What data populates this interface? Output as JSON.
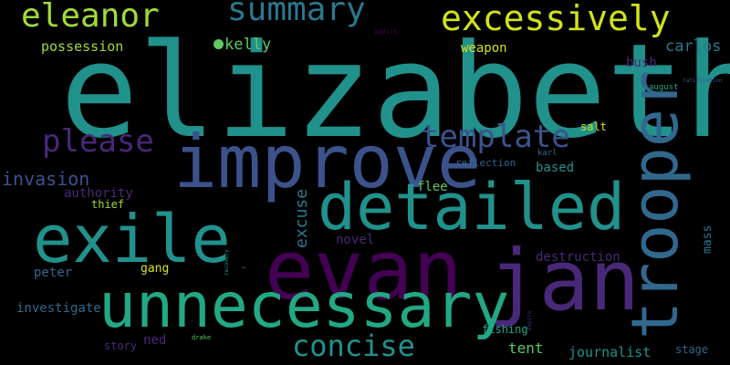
{
  "palette": {
    "background": "#000000",
    "teal": "#21918c",
    "green_teal": "#22a884",
    "blue": "#3b528b",
    "steel": "#31688e",
    "purple": "#482878",
    "dark_purple": "#440154",
    "yellow": "#d2e21b",
    "lime": "#a0da39",
    "green": "#5ec962",
    "gray_teal": "#2a788e"
  },
  "words": {
    "elizabeth": "elizabeth",
    "jan": "jan",
    "evan": "evan",
    "trooper": "trooper",
    "improve": "improve",
    "unnecessary": "unnecessary",
    "detailed": "detailed",
    "exile": "exile",
    "excessively": "excessively",
    "summary": "summary",
    "eleanor": "eleanor",
    "please": "please",
    "template": "template",
    "concise": "concise",
    "kelly": "kelly",
    "invasion": "invasion",
    "excuse": "excuse",
    "carlos": "carlos",
    "possession": "possession",
    "weapon": "weapon",
    "bush": "bush",
    "authority": "authority",
    "thief": "thief",
    "flee": "flee",
    "based": "based",
    "reflection": "reflection",
    "karl": "karl",
    "salt": "salt",
    "novel": "novel",
    "destruction": "destruction",
    "peter": "peter",
    "gang": "gang",
    "investigate": "investigate",
    "ned": "ned",
    "story": "story",
    "tent": "tent",
    "journalist": "journalist",
    "fishing": "fishing",
    "stage": "stage",
    "mass": "mass",
    "august": "august",
    "addict": "addict",
    "ratification": "ratification",
    "recovery": "recovery",
    "empire": "empire",
    "drake": "drake",
    "tiny": "la"
  }
}
